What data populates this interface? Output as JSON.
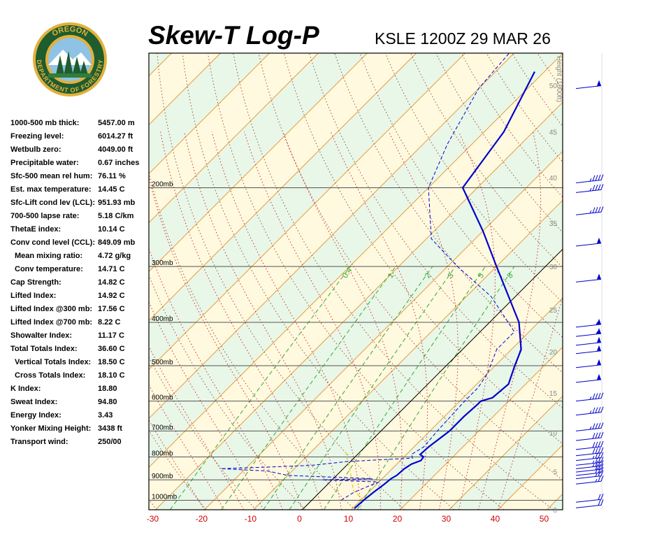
{
  "header": {
    "title": "Skew-T Log-P",
    "station": "KSLE 1200Z 29 MAR 26"
  },
  "logo": {
    "top_text": "OREGON",
    "bottom_text": "DEPARTMENT OF FORESTRY",
    "colors": {
      "ring": "#1f5c2e",
      "gold": "#e2b13c",
      "sky": "#8fc3e6"
    }
  },
  "stats": [
    {
      "label": "1000-500 mb thick:",
      "value": "5457.00 m"
    },
    {
      "label": "Freezing level:",
      "value": "6014.27 ft"
    },
    {
      "label": "Wetbulb zero:",
      "value": "4049.00 ft"
    },
    {
      "label": "Precipitable water:",
      "value": "0.67 inches"
    },
    {
      "label": "Sfc-500 mean rel hum:",
      "value": "76.11 %"
    },
    {
      "label": "Est. max temperature:",
      "value": "14.45 C"
    },
    {
      "label": "Sfc-Lift cond lev (LCL):",
      "value": "951.93 mb"
    },
    {
      "label": "700-500 lapse rate:",
      "value": "5.18 C/km"
    },
    {
      "label": "ThetaE index:",
      "value": "10.14 C"
    },
    {
      "label": "Conv cond level (CCL):",
      "value": "849.09 mb"
    },
    {
      "label": "Mean mixing ratio:",
      "value": "4.72 g/kg",
      "indent": true
    },
    {
      "label": "Conv temperature:",
      "value": "14.71 C",
      "indent": true
    },
    {
      "label": "Cap Strength:",
      "value": "14.82 C"
    },
    {
      "label": "Lifted Index:",
      "value": "14.92 C"
    },
    {
      "label": "Lifted Index @300 mb:",
      "value": "17.56 C"
    },
    {
      "label": "Lifted Index @700 mb:",
      "value": "8.22 C"
    },
    {
      "label": "Showalter Index:",
      "value": "11.17 C"
    },
    {
      "label": "Total Totals Index:",
      "value": "36.60 C"
    },
    {
      "label": "Vertical Totals Index:",
      "value": "18.50 C",
      "indent": true
    },
    {
      "label": "Cross Totals Index:",
      "value": "18.10 C",
      "indent": true
    },
    {
      "label": "K Index:",
      "value": "18.80"
    },
    {
      "label": "Sweat Index:",
      "value": "94.80"
    },
    {
      "label": "Energy Index:",
      "value": "3.43"
    },
    {
      "label": "Yonker Mixing Height:",
      "value": "3438 ft"
    },
    {
      "label": "Transport wind:",
      "value": "250/00"
    }
  ],
  "chart_data": {
    "type": "line",
    "subtype": "skew-t log-p",
    "x_axis": {
      "ticks": [
        -30,
        -20,
        -10,
        0,
        10,
        20,
        30,
        40,
        50
      ],
      "range": [
        -32,
        51
      ]
    },
    "y_axis": {
      "scale": "log",
      "range": [
        100,
        1050
      ]
    },
    "pressure_levels": [
      {
        "p": 200,
        "label": "200mb"
      },
      {
        "p": 300,
        "label": "300mb"
      },
      {
        "p": 400,
        "label": "400mb"
      },
      {
        "p": 500,
        "label": "500mb"
      },
      {
        "p": 600,
        "label": "600mb"
      },
      {
        "p": 700,
        "label": "700mb"
      },
      {
        "p": 800,
        "label": "800mb"
      },
      {
        "p": 900,
        "label": "900mb"
      },
      {
        "p": 1000,
        "label": "1000mb"
      }
    ],
    "height_axis": {
      "label": "Height (1000ft)",
      "ticks": [
        {
          "label": "0",
          "p": 1050
        },
        {
          "label": "5",
          "p": 863
        },
        {
          "label": "10",
          "p": 707
        },
        {
          "label": "15",
          "p": 575
        },
        {
          "label": "20",
          "p": 465
        },
        {
          "label": "25",
          "p": 375
        },
        {
          "label": "30",
          "p": 300
        },
        {
          "label": "35",
          "p": 240
        },
        {
          "label": "40",
          "p": 190
        },
        {
          "label": "45",
          "p": 150
        },
        {
          "label": "50",
          "p": 118
        }
      ]
    },
    "mixing_ratio_labels": [
      "0.4",
      "1",
      "2",
      "3",
      "5",
      "8"
    ],
    "series": [
      {
        "key": "temperature",
        "color": "#0000cc",
        "points": [
          [
            1043,
            10.4
          ],
          [
            1000,
            10.6
          ],
          [
            960,
            11.0
          ],
          [
            925,
            11.5
          ],
          [
            895,
            11.8
          ],
          [
            880,
            12.3
          ],
          [
            850,
            12.5
          ],
          [
            830,
            13.0
          ],
          [
            815,
            14.2
          ],
          [
            800,
            14.0
          ],
          [
            790,
            12.8
          ],
          [
            760,
            13.0
          ],
          [
            700,
            14.0
          ],
          [
            650,
            14.0
          ],
          [
            610,
            14.3
          ],
          [
            600,
            14.3
          ],
          [
            590,
            16.0
          ],
          [
            550,
            16.5
          ],
          [
            500,
            14.0
          ],
          [
            460,
            12.0
          ],
          [
            400,
            6.0
          ],
          [
            300,
            -10.0
          ],
          [
            250,
            -20.0
          ],
          [
            200,
            -33.0
          ],
          [
            150,
            -36.0
          ],
          [
            110,
            -42.0
          ]
        ]
      },
      {
        "key": "dewpoint",
        "color": "#0000cc",
        "points": [
          [
            1000,
            6.0
          ],
          [
            960,
            7.0
          ],
          [
            925,
            9.0
          ],
          [
            910,
            10.0
          ],
          [
            900,
            -2.0
          ],
          [
            895,
            8.0
          ],
          [
            880,
            -10.0
          ],
          [
            860,
            -15.0
          ],
          [
            850,
            -25.0
          ],
          [
            840,
            -12.0
          ],
          [
            835,
            -7.0
          ],
          [
            820,
            -1.0
          ],
          [
            815,
            3.0
          ],
          [
            805,
            12.0
          ],
          [
            790,
            11.0
          ],
          [
            760,
            12.0
          ],
          [
            700,
            11.5
          ],
          [
            600,
            11.0
          ],
          [
            560,
            11.0
          ],
          [
            520,
            10.0
          ],
          [
            460,
            7.0
          ],
          [
            420,
            7.0
          ],
          [
            350,
            -5.0
          ],
          [
            300,
            -18.0
          ],
          [
            260,
            -29.0
          ],
          [
            200,
            -40.0
          ],
          [
            160,
            -45.0
          ],
          [
            120,
            -50.0
          ],
          [
            100,
            -51.0
          ]
        ]
      }
    ],
    "wind_barbs_kt": [
      {
        "p": 1040,
        "speed": 20
      },
      {
        "p": 1010,
        "speed": 20
      },
      {
        "p": 920,
        "speed": 25
      },
      {
        "p": 895,
        "speed": 25
      },
      {
        "p": 880,
        "speed": 30
      },
      {
        "p": 865,
        "speed": 30
      },
      {
        "p": 850,
        "speed": 35
      },
      {
        "p": 835,
        "speed": 35
      },
      {
        "p": 815,
        "speed": 35
      },
      {
        "p": 795,
        "speed": 40
      },
      {
        "p": 770,
        "speed": 40
      },
      {
        "p": 735,
        "speed": 40
      },
      {
        "p": 700,
        "speed": 45
      },
      {
        "p": 645,
        "speed": 45
      },
      {
        "p": 600,
        "speed": 45
      },
      {
        "p": 545,
        "speed": 50
      },
      {
        "p": 505,
        "speed": 50
      },
      {
        "p": 470,
        "speed": 50
      },
      {
        "p": 450,
        "speed": 50
      },
      {
        "p": 430,
        "speed": 55
      },
      {
        "p": 410,
        "speed": 55
      },
      {
        "p": 325,
        "speed": 50
      },
      {
        "p": 270,
        "speed": 50
      },
      {
        "p": 230,
        "speed": 45
      },
      {
        "p": 205,
        "speed": 45
      },
      {
        "p": 195,
        "speed": 45
      },
      {
        "p": 120,
        "speed": 50
      }
    ]
  }
}
